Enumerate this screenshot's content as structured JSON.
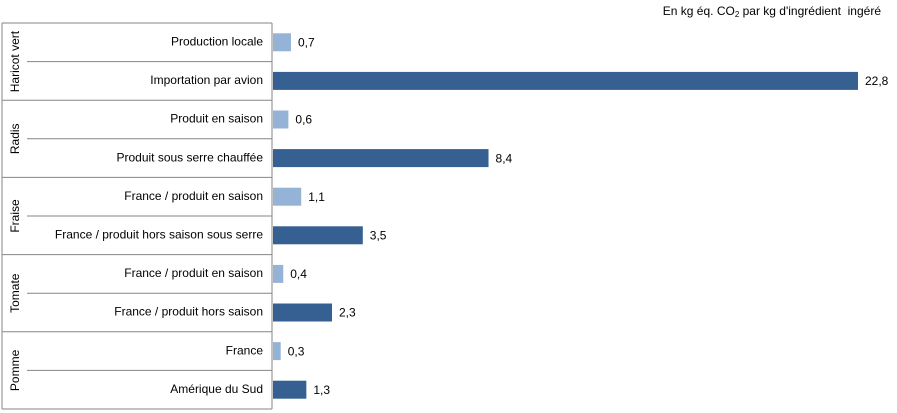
{
  "unit_note": {
    "prefix": "En kg éq. CO",
    "subscript": "2",
    "suffix": " par kg d'ingrédient  ingéré"
  },
  "colors": {
    "light_bar": "#95b3d7",
    "dark_bar": "#366092",
    "axis": "#868686"
  },
  "chart_data": {
    "type": "bar",
    "orientation": "horizontal",
    "xlim": [
      0,
      23.1
    ],
    "grid": false,
    "legend": "none",
    "groups": [
      {
        "name": "Haricot vert",
        "items": [
          {
            "label": "Production locale",
            "value": 0.7,
            "value_label": "0,7",
            "shade": "light"
          },
          {
            "label": "Importation par avion",
            "value": 22.8,
            "value_label": "22,8",
            "shade": "dark"
          }
        ]
      },
      {
        "name": "Radis",
        "items": [
          {
            "label": "Produit en saison",
            "value": 0.6,
            "value_label": "0,6",
            "shade": "light"
          },
          {
            "label": "Produit sous serre chauffée",
            "value": 8.4,
            "value_label": "8,4",
            "shade": "dark"
          }
        ]
      },
      {
        "name": "Fraise",
        "items": [
          {
            "label": "France / produit en saison",
            "value": 1.1,
            "value_label": "1,1",
            "shade": "light"
          },
          {
            "label": "France / produit hors saison sous serre",
            "value": 3.5,
            "value_label": "3,5",
            "shade": "dark"
          }
        ]
      },
      {
        "name": "Tomate",
        "items": [
          {
            "label": "France / produit en saison",
            "value": 0.4,
            "value_label": "0,4",
            "shade": "light"
          },
          {
            "label": "France / produit hors saison",
            "value": 2.3,
            "value_label": "2,3",
            "shade": "dark"
          }
        ]
      },
      {
        "name": "Pomme",
        "items": [
          {
            "label": "France",
            "value": 0.3,
            "value_label": "0,3",
            "shade": "light"
          },
          {
            "label": "Amérique du Sud",
            "value": 1.3,
            "value_label": "1,3",
            "shade": "dark"
          }
        ]
      }
    ]
  }
}
